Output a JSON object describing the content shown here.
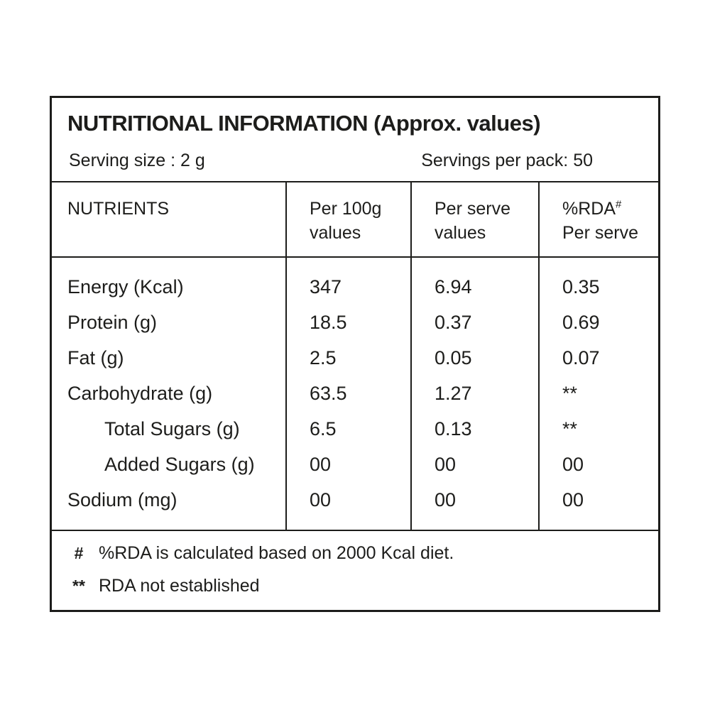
{
  "title": "NUTRITIONAL INFORMATION (Approx. values)",
  "serving": {
    "size_label": "Serving size : 2 g",
    "per_pack_label": "Servings per pack: 50"
  },
  "table": {
    "headers": {
      "nutrients": "NUTRIENTS",
      "per_100g_line1": "Per 100g",
      "per_100g_line2": "values",
      "per_serve_line1": "Per serve",
      "per_serve_line2": "values",
      "rda_line1": "%RDA",
      "rda_sup": "#",
      "rda_line2": "Per serve"
    },
    "rows": [
      {
        "label": "Energy (Kcal)",
        "per_100g": "347",
        "per_serve": "6.94",
        "rda": "0.35"
      },
      {
        "label": "Protein (g)",
        "per_100g": "18.5",
        "per_serve": "0.37",
        "rda": "0.69"
      },
      {
        "label": "Fat (g)",
        "per_100g": "2.5",
        "per_serve": "0.05",
        "rda": "0.07"
      },
      {
        "label": "Carbohydrate (g)",
        "per_100g": "63.5",
        "per_serve": "1.27",
        "rda": "**"
      },
      {
        "label": "Total Sugars (g)",
        "per_100g": "6.5",
        "per_serve": "0.13",
        "rda": "**"
      },
      {
        "label": "Added Sugars (g)",
        "per_100g": "00",
        "per_serve": "00",
        "rda": "00"
      },
      {
        "label": "Sodium (mg)",
        "per_100g": "00",
        "per_serve": "00",
        "rda": "00"
      }
    ],
    "footnotes": [
      {
        "symbol": "#",
        "text": "%RDA is calculated based on 2000 Kcal diet."
      },
      {
        "symbol": "**",
        "text": "RDA not established"
      }
    ]
  },
  "colors": {
    "text": "#1d1d1b",
    "border": "#1d1d1b",
    "background": "#ffffff"
  }
}
